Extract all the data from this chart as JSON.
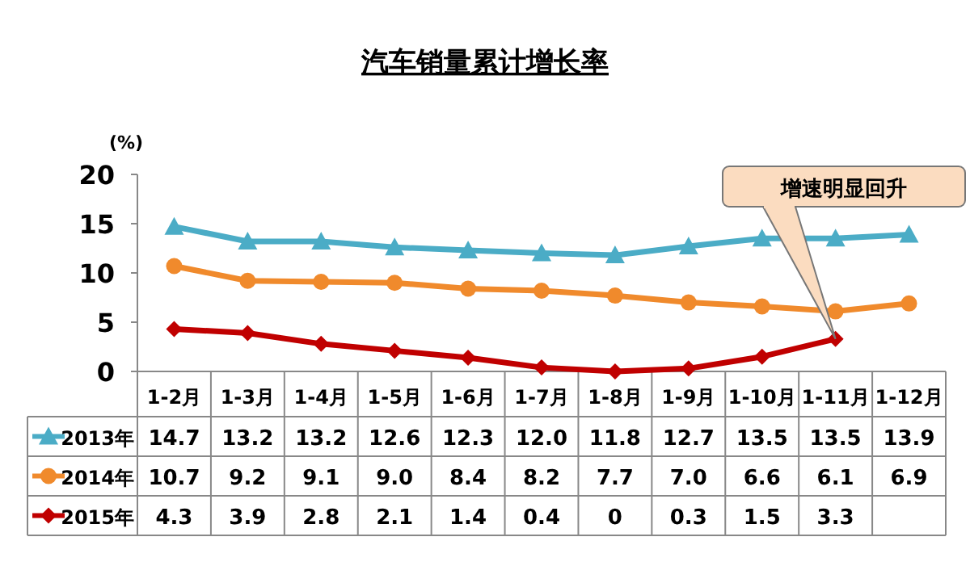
{
  "chart_data": {
    "type": "line",
    "title": "汽车销量累计增长率",
    "ylabel": "(%)",
    "categories": [
      "1-2月",
      "1-3月",
      "1-4月",
      "1-5月",
      "1-6月",
      "1-7月",
      "1-8月",
      "1-9月",
      "1-10月",
      "1-11月",
      "1-12月"
    ],
    "series": [
      {
        "name": "2013年",
        "color": "#4bacc6",
        "marker": "triangle",
        "values": [
          14.7,
          13.2,
          13.2,
          12.6,
          12.3,
          12.0,
          11.8,
          12.7,
          13.5,
          13.5,
          13.9
        ],
        "value_labels": [
          "14.7",
          "13.2",
          "13.2",
          "12.6",
          "12.3",
          "12.0",
          "11.8",
          "12.7",
          "13.5",
          "13.5",
          "13.9"
        ]
      },
      {
        "name": "2014年",
        "color": "#f08a2c",
        "marker": "circle",
        "values": [
          10.7,
          9.2,
          9.1,
          9.0,
          8.4,
          8.2,
          7.7,
          7.0,
          6.6,
          6.1,
          6.9
        ],
        "value_labels": [
          "10.7",
          "9.2",
          "9.1",
          "9.0",
          "8.4",
          "8.2",
          "7.7",
          "7.0",
          "6.6",
          "6.1",
          "6.9"
        ]
      },
      {
        "name": "2015年",
        "color": "#c00000",
        "marker": "diamond",
        "values": [
          4.3,
          3.9,
          2.8,
          2.1,
          1.4,
          0.4,
          0,
          0.3,
          1.5,
          3.3,
          null
        ],
        "value_labels": [
          "4.3",
          "3.9",
          "2.8",
          "2.1",
          "1.4",
          "0.4",
          "0",
          "0.3",
          "1.5",
          "3.3",
          null
        ]
      }
    ],
    "ylim": [
      0,
      20
    ],
    "yticks": [
      0,
      5,
      10,
      15,
      20
    ],
    "grid": false,
    "legend": "bottom",
    "annotations": [
      "增速明显回升"
    ]
  }
}
